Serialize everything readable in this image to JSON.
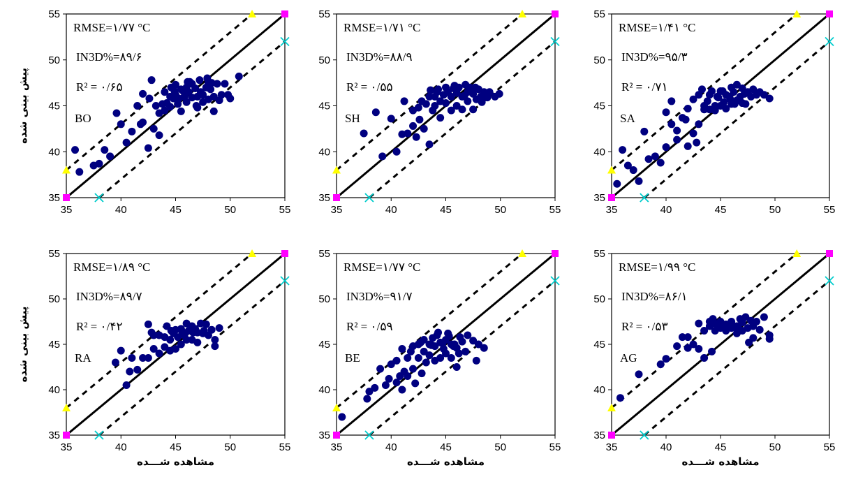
{
  "chart_data": [
    {
      "type": "scatter",
      "station": "BO",
      "stats": [
        "RMSE=۱/۷۷ °C",
        "IN3D%=۸۹/۶",
        "R² = ۰/۶۵"
      ],
      "ylabel": "پیش بینی شده",
      "xlabel": "",
      "xlim": [
        35,
        55
      ],
      "ylim": [
        35,
        55
      ],
      "xticks": [
        "35",
        "40",
        "45",
        "50",
        "55"
      ],
      "yticks": [
        "35",
        "40",
        "45",
        "50",
        "55"
      ],
      "x": [
        35.8,
        36.2,
        37.5,
        38.0,
        38.5,
        39.0,
        39.6,
        40.0,
        40.5,
        41.0,
        41.5,
        41.8,
        42.0,
        42.0,
        42.5,
        42.6,
        42.8,
        43.0,
        43.2,
        43.5,
        43.5,
        43.8,
        44.0,
        44.0,
        44.2,
        44.5,
        44.5,
        44.8,
        45.0,
        45.0,
        45.2,
        45.5,
        45.5,
        45.8,
        46.0,
        46.0,
        46.2,
        46.5,
        46.5,
        46.8,
        47.0,
        47.0,
        47.2,
        47.5,
        47.5,
        47.8,
        48.0,
        48.0,
        48.2,
        48.5,
        48.5,
        48.8,
        49.0,
        49.2,
        49.5,
        49.8,
        50.0,
        50.8,
        44.6,
        45.7,
        46.9,
        47.9,
        45.3,
        46.3,
        47.3,
        48.3,
        44.9,
        46.1
      ],
      "y": [
        40.2,
        37.8,
        38.5,
        38.7,
        40.2,
        39.5,
        44.2,
        43.0,
        41.0,
        42.2,
        45.0,
        43.0,
        46.3,
        43.2,
        40.4,
        45.8,
        47.8,
        42.5,
        45.0,
        44.2,
        41.8,
        45.2,
        46.5,
        44.5,
        45.3,
        46.0,
        44.9,
        45.8,
        47.3,
        46.2,
        45.2,
        46.8,
        44.4,
        46.0,
        47.0,
        45.4,
        46.5,
        47.4,
        45.9,
        46.9,
        46.0,
        44.8,
        47.8,
        46.2,
        45.4,
        47.0,
        47.5,
        45.7,
        46.8,
        46.0,
        44.4,
        47.4,
        45.6,
        46.2,
        47.4,
        46.2,
        45.8,
        48.2,
        47.0,
        46.6,
        45.0,
        48.0,
        45.8,
        47.6,
        46.5,
        47.5,
        46.6,
        47.6
      ]
    },
    {
      "type": "scatter",
      "station": "SH",
      "stats": [
        "RMSE=۱/۷۱ °C",
        "IN3D%=۸۸/۹",
        "R² = ۰/۵۵"
      ],
      "ylabel": "",
      "xlabel": "",
      "xlim": [
        35,
        55
      ],
      "ylim": [
        35,
        55
      ],
      "xticks": [
        "35",
        "40",
        "45",
        "50",
        "55"
      ],
      "yticks": [
        "35",
        "40",
        "45",
        "50",
        "55"
      ],
      "x": [
        37.5,
        38.6,
        39.2,
        40.0,
        40.5,
        41.0,
        41.2,
        41.5,
        42.0,
        42.0,
        42.3,
        42.5,
        42.8,
        43.0,
        43.2,
        43.5,
        43.5,
        43.8,
        44.0,
        44.0,
        44.2,
        44.5,
        44.5,
        44.8,
        45.0,
        45.0,
        45.2,
        45.5,
        45.5,
        45.8,
        46.0,
        46.0,
        46.2,
        46.5,
        46.5,
        46.8,
        47.0,
        47.0,
        47.2,
        47.5,
        47.5,
        47.8,
        48.0,
        48.2,
        48.5,
        48.8,
        49.0,
        49.5,
        49.9,
        43.6,
        44.3,
        45.7,
        46.7,
        47.7,
        48.3,
        42.6
      ],
      "y": [
        42.0,
        44.3,
        39.5,
        43.6,
        40.0,
        41.9,
        45.5,
        42.0,
        42.8,
        44.5,
        41.6,
        44.8,
        45.5,
        42.5,
        45.2,
        46.0,
        40.8,
        44.5,
        46.0,
        45.0,
        46.5,
        45.5,
        43.7,
        46.2,
        47.0,
        45.3,
        46.5,
        46.0,
        44.5,
        47.2,
        46.4,
        45.0,
        47.0,
        46.0,
        44.6,
        47.3,
        46.5,
        45.5,
        47.0,
        46.3,
        44.6,
        45.7,
        46.8,
        46.0,
        46.5,
        45.9,
        46.5,
        46.0,
        46.3,
        46.7,
        46.8,
        46.9,
        46.1,
        47.0,
        45.4,
        43.5
      ]
    },
    {
      "type": "scatter",
      "station": "SA",
      "stats": [
        "RMSE=۱/۴۱ °C",
        "IN3D%=۹۵/۳",
        "R² = ۰/۷۱"
      ],
      "ylabel": "",
      "xlabel": "",
      "xlim": [
        35,
        55
      ],
      "ylim": [
        35,
        55
      ],
      "xticks": [
        "35",
        "40",
        "45",
        "50",
        "55"
      ],
      "yticks": [
        "35",
        "40",
        "45",
        "50",
        "55"
      ],
      "x": [
        35.5,
        36.0,
        36.5,
        37.0,
        37.5,
        38.0,
        38.4,
        39.0,
        39.5,
        40.0,
        40.0,
        40.5,
        40.5,
        41.0,
        41.0,
        41.5,
        41.8,
        42.0,
        42.0,
        42.5,
        42.5,
        42.8,
        43.0,
        43.0,
        43.3,
        43.5,
        43.5,
        43.8,
        44.0,
        44.0,
        44.2,
        44.5,
        44.5,
        44.8,
        45.0,
        45.0,
        45.2,
        45.5,
        45.5,
        45.8,
        46.0,
        46.0,
        46.2,
        46.5,
        46.5,
        46.8,
        47.0,
        47.0,
        47.2,
        47.5,
        47.8,
        48.0,
        48.3,
        48.6,
        49.0,
        49.5,
        45.3,
        46.3,
        47.3,
        44.7,
        45.9,
        46.7
      ],
      "y": [
        36.5,
        40.2,
        38.5,
        38.0,
        36.8,
        42.2,
        39.2,
        39.5,
        38.8,
        44.3,
        40.5,
        45.5,
        43.0,
        41.3,
        42.3,
        43.7,
        43.5,
        40.6,
        44.7,
        42.0,
        45.7,
        41.0,
        46.2,
        43.0,
        46.8,
        45.0,
        44.6,
        45.5,
        46.2,
        44.6,
        46.6,
        45.0,
        44.5,
        45.9,
        46.6,
        45.0,
        46.6,
        46.2,
        44.7,
        46.0,
        47.0,
        45.2,
        46.5,
        47.3,
        45.6,
        46.0,
        46.9,
        45.3,
        46.3,
        46.5,
        46.0,
        46.8,
        46.2,
        46.5,
        46.2,
        45.8,
        45.4,
        45.2,
        45.2,
        46.0,
        45.7,
        45.6
      ]
    },
    {
      "type": "scatter",
      "station": "RA",
      "stats": [
        "RMSE=۱/۸۹ °C",
        "IN3D%=۸۹/۷",
        "R² = ۰/۴۲"
      ],
      "ylabel": "پیش بینی شده",
      "xlabel": "مشاهده شـــده",
      "xlim": [
        35,
        55
      ],
      "ylim": [
        35,
        55
      ],
      "xticks": [
        "35",
        "40",
        "45",
        "50",
        "55"
      ],
      "yticks": [
        "35",
        "40",
        "45",
        "50",
        "55"
      ],
      "x": [
        39.5,
        40.0,
        40.5,
        40.8,
        41.0,
        41.5,
        42.0,
        42.5,
        42.5,
        43.0,
        43.0,
        43.5,
        43.5,
        44.0,
        44.0,
        44.2,
        44.5,
        44.5,
        44.8,
        45.0,
        45.0,
        45.2,
        45.5,
        45.5,
        45.8,
        46.0,
        46.0,
        46.2,
        46.5,
        46.5,
        46.8,
        47.0,
        47.0,
        47.3,
        47.5,
        47.8,
        48.0,
        48.3,
        48.6,
        49.0,
        42.8,
        44.6,
        45.6,
        46.6,
        47.6,
        48.6
      ],
      "y": [
        43.0,
        44.3,
        40.5,
        42.0,
        43.5,
        42.2,
        43.5,
        43.5,
        47.2,
        46.0,
        44.5,
        46.0,
        44.0,
        45.8,
        44.7,
        47.0,
        45.5,
        44.3,
        46.2,
        46.6,
        44.5,
        45.8,
        46.7,
        45.0,
        46.0,
        47.3,
        45.5,
        46.5,
        47.0,
        45.5,
        46.7,
        46.3,
        45.2,
        47.3,
        46.2,
        47.2,
        46.0,
        46.6,
        45.5,
        46.8,
        46.3,
        46.5,
        46.4,
        46.3,
        46.5,
        44.8
      ]
    },
    {
      "type": "scatter",
      "station": "BE",
      "stats": [
        "RMSE=۱/۷۷ °C",
        "IN3D%=۹۱/۷",
        "R² = ۰/۵۹"
      ],
      "ylabel": "",
      "xlabel": "مشاهده شـــده",
      "xlim": [
        35,
        55
      ],
      "ylim": [
        35,
        55
      ],
      "xticks": [
        "35",
        "40",
        "45",
        "50",
        "55"
      ],
      "yticks": [
        "35",
        "40",
        "45",
        "50",
        "55"
      ],
      "x": [
        35.5,
        37.8,
        38.0,
        38.5,
        39.0,
        39.5,
        39.8,
        40.0,
        40.5,
        40.5,
        40.8,
        41.0,
        41.0,
        41.2,
        41.5,
        41.5,
        41.8,
        42.0,
        42.0,
        42.2,
        42.5,
        42.5,
        42.8,
        43.0,
        43.0,
        43.2,
        43.5,
        43.5,
        43.8,
        44.0,
        44.0,
        44.2,
        44.5,
        44.5,
        44.8,
        45.0,
        45.0,
        45.2,
        45.5,
        45.5,
        45.8,
        46.0,
        46.0,
        46.3,
        46.5,
        46.8,
        47.0,
        47.5,
        47.8,
        48.0,
        48.5,
        43.7,
        44.7,
        45.7,
        42.7,
        46.2,
        44.3,
        45.3
      ],
      "y": [
        37.0,
        39.0,
        39.8,
        40.2,
        42.3,
        40.5,
        41.2,
        42.8,
        40.8,
        43.2,
        41.5,
        44.5,
        40.0,
        42.0,
        43.5,
        41.5,
        44.2,
        42.3,
        44.8,
        40.7,
        43.5,
        45.0,
        41.8,
        44.2,
        45.5,
        43.0,
        45.0,
        43.8,
        45.7,
        44.8,
        43.2,
        46.0,
        45.2,
        43.5,
        44.5,
        45.5,
        44.0,
        46.2,
        45.0,
        43.5,
        45.0,
        44.6,
        42.5,
        45.8,
        45.3,
        44.2,
        46.0,
        45.4,
        43.2,
        45.0,
        44.6,
        44.9,
        45.1,
        44.8,
        45.2,
        44.0,
        46.3,
        45.9
      ]
    },
    {
      "type": "scatter",
      "station": "AG",
      "stats": [
        "RMSE=۱/۹۹ °C",
        "IN3D%=۸۶/۱",
        "R² = ۰/۵۳"
      ],
      "ylabel": "",
      "xlabel": "مشاهده شـــده",
      "xlim": [
        35,
        55
      ],
      "ylim": [
        35,
        55
      ],
      "xticks": [
        "35",
        "40",
        "45",
        "50",
        "55"
      ],
      "yticks": [
        "35",
        "40",
        "45",
        "50",
        "55"
      ],
      "x": [
        35.8,
        37.5,
        39.5,
        40.0,
        41.0,
        41.5,
        42.0,
        42.0,
        42.5,
        43.0,
        43.0,
        43.5,
        43.5,
        44.0,
        44.0,
        44.2,
        44.5,
        44.5,
        44.8,
        45.0,
        45.0,
        45.2,
        45.5,
        45.5,
        45.8,
        46.0,
        46.0,
        46.2,
        46.5,
        46.5,
        46.8,
        47.0,
        47.0,
        47.3,
        47.5,
        47.8,
        48.0,
        48.0,
        48.3,
        48.6,
        49.0,
        49.5,
        49.5,
        45.6,
        46.6,
        47.6,
        44.3,
        46.3
      ],
      "y": [
        39.1,
        41.7,
        42.8,
        43.4,
        44.8,
        45.8,
        44.6,
        45.8,
        45.0,
        47.3,
        44.5,
        46.5,
        43.5,
        47.5,
        47.0,
        44.2,
        47.3,
        46.5,
        47.2,
        47.5,
        46.8,
        47.0,
        47.2,
        46.5,
        47.0,
        47.5,
        46.8,
        47.0,
        47.0,
        46.2,
        47.8,
        47.4,
        46.5,
        48.0,
        46.8,
        47.6,
        47.0,
        45.7,
        47.5,
        46.6,
        48.0,
        46.0,
        45.6,
        47.1,
        47.0,
        45.2,
        47.8,
        46.9
      ]
    }
  ]
}
